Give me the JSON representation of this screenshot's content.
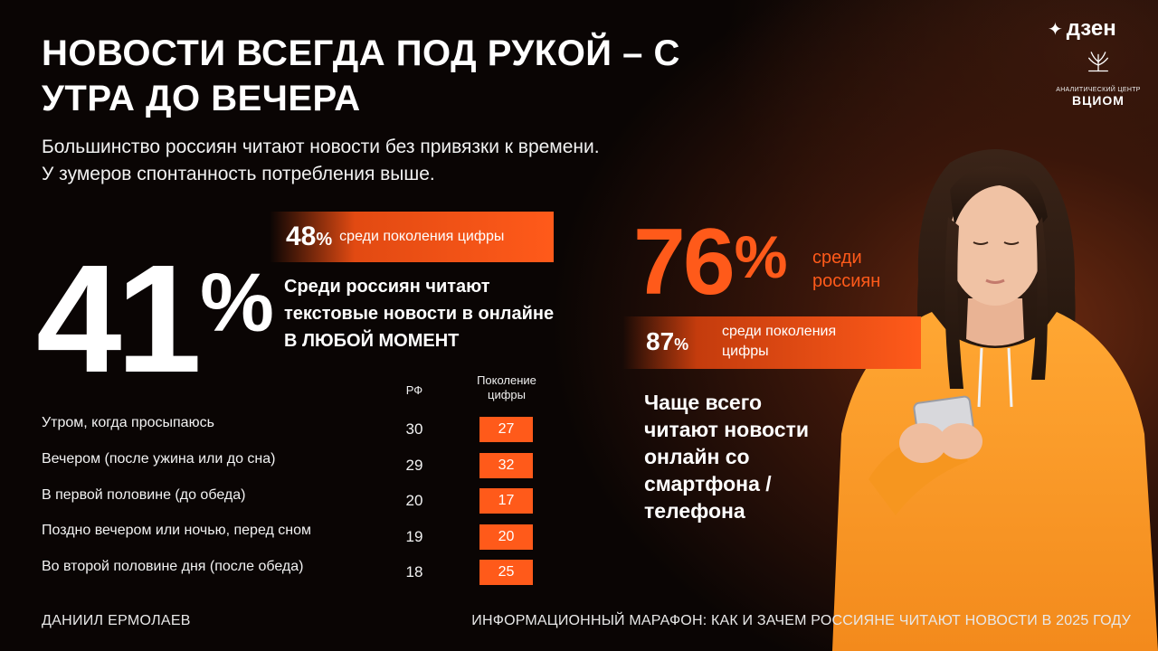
{
  "header": {
    "title": "НОВОСТИ ВСЕГДА ПОД РУКОЙ – С УТРА ДО ВЕЧЕРА",
    "subtitle_line1": "Большинство россиян читают новости без привязки к времени.",
    "subtitle_line2": "У зумеров спонтанность потребления выше."
  },
  "logos": {
    "dzen": "дзен",
    "vciom_sub": "АНАЛИТИЧЕСКИЙ ЦЕНТР",
    "vciom_name": "ВЦИОМ"
  },
  "stat_left": {
    "value": "41",
    "pct": "%",
    "gen_value": "48",
    "gen_pct": "%",
    "gen_label": "среди поколения цифры",
    "desc_line1": "Среди россиян читают",
    "desc_line2": "текстовые новости в онлайне",
    "desc_line3": "В ЛЮБОЙ МОМЕНТ"
  },
  "table": {
    "col_rf": "РФ",
    "col_gen": "Поколение цифры",
    "rows": [
      {
        "label": "Утром, когда просыпаюсь",
        "rf": "30",
        "gen": "27"
      },
      {
        "label": "Вечером (после ужина или до сна)",
        "rf": "29",
        "gen": "32"
      },
      {
        "label": "В первой половине (до обеда)",
        "rf": "20",
        "gen": "17"
      },
      {
        "label": "Поздно вечером или ночью, перед сном",
        "rf": "19",
        "gen": "20"
      },
      {
        "label": "Во второй половине дня (после обеда)",
        "rf": "18",
        "gen": "25"
      }
    ]
  },
  "stat_right": {
    "value": "76",
    "pct": "%",
    "label_line1": "среди",
    "label_line2": "россиян",
    "gen_value": "87",
    "gen_pct": "%",
    "gen_label_line1": "среди поколения",
    "gen_label_line2": "цифры",
    "device_line1": "Чаще всего",
    "device_line2": "читают новости",
    "device_line3": "онлайн со",
    "device_line4": "смартфона /",
    "device_line5": "телефона"
  },
  "footer": {
    "author": "ДАНИИЛ ЕРМОЛАЕВ",
    "event": "ИНФОРМАЦИОННЫЙ МАРАФОН: КАК И ЗАЧЕМ РОССИЯНЕ ЧИТАЮТ НОВОСТИ В 2025 ГОДУ"
  },
  "colors": {
    "accent": "#ff5a1a",
    "background": "#0a0504",
    "hoodie": "#ff9a2a"
  }
}
